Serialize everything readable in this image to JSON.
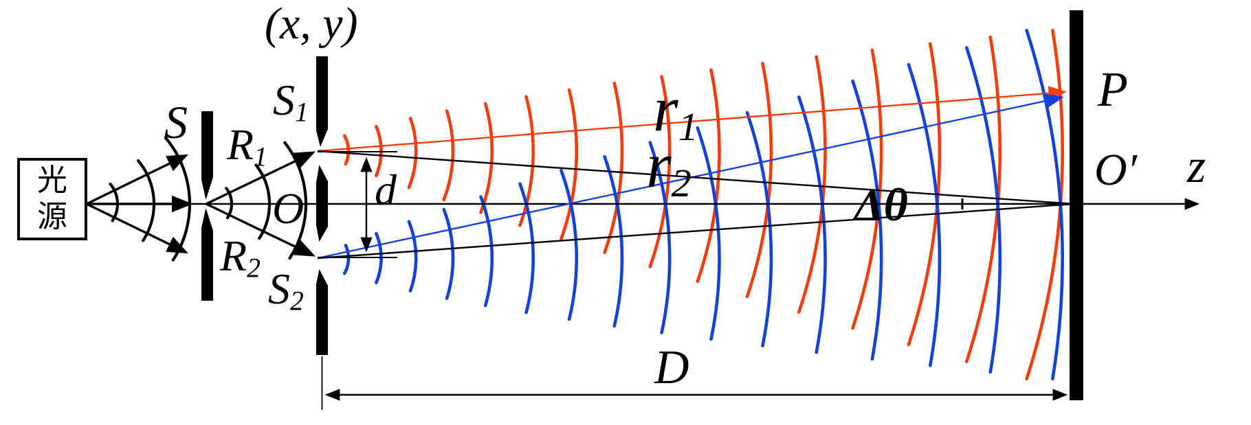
{
  "colors": {
    "background": "#ffffff",
    "ink": "#000000",
    "wavefront_red": "#f23d0d",
    "wavefront_blue": "#1441d6"
  },
  "labels": {
    "source_box": "光源",
    "plane_coords": "(x, y)",
    "slit_s": "S",
    "slit_s1": {
      "base": "S",
      "sub": "1"
    },
    "slit_s2": {
      "base": "S",
      "sub": "2"
    },
    "radius_r1": {
      "base": "R",
      "sub": "1"
    },
    "radius_r2": {
      "base": "R",
      "sub": "2"
    },
    "origin_o": "O",
    "slit_separation": "d",
    "ray_r1": {
      "base": "r",
      "sub": "1"
    },
    "ray_r2": {
      "base": "r",
      "sub": "2"
    },
    "angle_delta_theta": "Δθ",
    "point_p": "P",
    "origin_o_prime": "O′",
    "axis_z": "z",
    "screen_distance": "D"
  },
  "wavefronts": {
    "red_count": 16,
    "blue_count": 16,
    "source_arc_count": 3,
    "between_arc_count": 3
  }
}
